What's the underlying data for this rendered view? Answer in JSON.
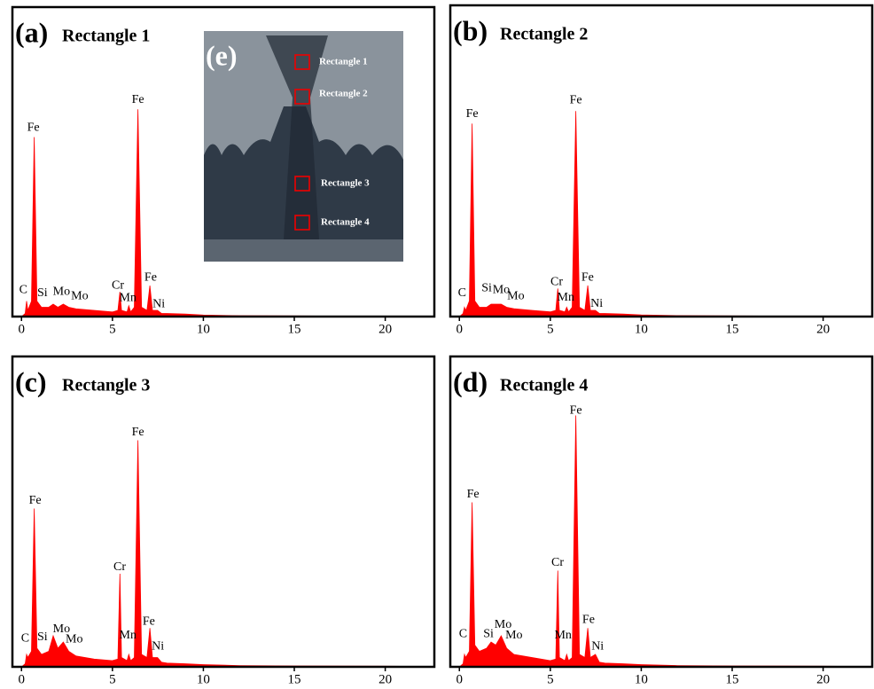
{
  "chart_data": [
    {
      "type": "area",
      "panel": "(a)",
      "title": "Rectangle 1",
      "color": "#ff0000",
      "x": [
        0,
        0.2,
        0.28,
        0.35,
        0.55,
        0.7,
        0.85,
        1.1,
        1.5,
        1.74,
        2,
        2.3,
        2.6,
        3,
        4,
        5,
        5.3,
        5.41,
        5.5,
        5.8,
        5.9,
        6,
        6.2,
        6.4,
        6.6,
        6.9,
        7.06,
        7.2,
        7.48,
        7.7,
        8,
        9,
        10,
        12,
        15,
        20,
        22.5
      ],
      "values": [
        0,
        1,
        5,
        2,
        5,
        58,
        5,
        3,
        3,
        4,
        3,
        4,
        3,
        2.5,
        2,
        1.5,
        2,
        8,
        2,
        1.5,
        3.5,
        1.5,
        3,
        67,
        3,
        2,
        10,
        2,
        2,
        1,
        1,
        0.8,
        0.5,
        0.3,
        0.2,
        0.1,
        0.1
      ],
      "xlim": [
        -0.5,
        22.7
      ],
      "xticks": [
        0,
        5,
        10,
        15,
        20
      ],
      "ylim": [
        0,
        100
      ],
      "annotations": [
        {
          "text": "Fe",
          "x": 0.65,
          "y": 61
        },
        {
          "text": "Fe",
          "x": 6.4,
          "y": 70
        },
        {
          "text": "C",
          "x": 0.1,
          "y": 8.5
        },
        {
          "text": "Si",
          "x": 1.15,
          "y": 7.5
        },
        {
          "text": "Mo",
          "x": 2.2,
          "y": 8
        },
        {
          "text": "Mo",
          "x": 3.2,
          "y": 6.5
        },
        {
          "text": "Cr",
          "x": 5.3,
          "y": 10
        },
        {
          "text": "Mn",
          "x": 5.85,
          "y": 6
        },
        {
          "text": "Fe",
          "x": 7.1,
          "y": 12.5
        },
        {
          "text": "Ni",
          "x": 7.55,
          "y": 4
        }
      ]
    },
    {
      "type": "area",
      "panel": "(b)",
      "title": "Rectangle 2",
      "color": "#ff0000",
      "x": [
        0,
        0.2,
        0.28,
        0.35,
        0.55,
        0.7,
        0.85,
        1.1,
        1.5,
        1.74,
        2,
        2.3,
        2.6,
        3,
        4,
        5,
        5.3,
        5.41,
        5.5,
        5.8,
        5.9,
        6,
        6.2,
        6.4,
        6.6,
        6.9,
        7.06,
        7.2,
        7.48,
        7.7,
        8,
        9,
        10,
        12,
        15,
        20,
        22.5
      ],
      "values": [
        0,
        1,
        3,
        2,
        5,
        62,
        5,
        3,
        3,
        4,
        4,
        4,
        3,
        2.5,
        2,
        1.5,
        2,
        9,
        2,
        1.5,
        3,
        1.5,
        3,
        66,
        3,
        2,
        10,
        2,
        2,
        1,
        1,
        0.8,
        0.5,
        0.3,
        0.2,
        0.1,
        0.1
      ],
      "xlim": [
        -0.5,
        22.7
      ],
      "xticks": [
        0,
        5,
        10,
        15,
        20
      ],
      "ylim": [
        0,
        100
      ],
      "annotations": [
        {
          "text": "Fe",
          "x": 0.7,
          "y": 65
        },
        {
          "text": "Fe",
          "x": 6.4,
          "y": 69.5
        },
        {
          "text": "C",
          "x": 0.15,
          "y": 7.5
        },
        {
          "text": "Si",
          "x": 1.5,
          "y": 9
        },
        {
          "text": "Mo",
          "x": 2.3,
          "y": 8.5
        },
        {
          "text": "Mo",
          "x": 3.1,
          "y": 6.5
        },
        {
          "text": "Cr",
          "x": 5.35,
          "y": 11
        },
        {
          "text": "Mn",
          "x": 5.85,
          "y": 6
        },
        {
          "text": "Fe",
          "x": 7.05,
          "y": 12.5
        },
        {
          "text": "Ni",
          "x": 7.55,
          "y": 4
        }
      ]
    },
    {
      "type": "area",
      "panel": "(c)",
      "title": "Rectangle 3",
      "color": "#ff0000",
      "x": [
        0,
        0.2,
        0.28,
        0.35,
        0.55,
        0.7,
        0.85,
        1.1,
        1.5,
        1.74,
        2,
        2.3,
        2.6,
        3,
        4,
        5,
        5.3,
        5.41,
        5.5,
        5.8,
        5.9,
        6,
        6.2,
        6.4,
        6.6,
        6.9,
        7.06,
        7.2,
        7.48,
        7.7,
        8,
        9,
        10,
        12,
        15,
        20,
        22.5
      ],
      "values": [
        0,
        1,
        4,
        3,
        5,
        51,
        6,
        4,
        5,
        10,
        6,
        8,
        5,
        3.5,
        2.5,
        2,
        2.5,
        30,
        3,
        2,
        4,
        2,
        3,
        73,
        4,
        3,
        12.5,
        3,
        3,
        1.5,
        1.2,
        1,
        0.7,
        0.4,
        0.3,
        0.2,
        0.1
      ],
      "xlim": [
        -0.5,
        22.7
      ],
      "xticks": [
        0,
        5,
        10,
        15,
        20
      ],
      "ylim": [
        0,
        100
      ],
      "annotations": [
        {
          "text": "Fe",
          "x": 0.75,
          "y": 53.5
        },
        {
          "text": "Fe",
          "x": 6.4,
          "y": 75.5
        },
        {
          "text": "Cr",
          "x": 5.4,
          "y": 32
        },
        {
          "text": "C",
          "x": 0.2,
          "y": 9
        },
        {
          "text": "Si",
          "x": 1.15,
          "y": 9.5
        },
        {
          "text": "Mo",
          "x": 2.2,
          "y": 12
        },
        {
          "text": "Mo",
          "x": 2.9,
          "y": 8.8
        },
        {
          "text": "Mn",
          "x": 5.85,
          "y": 10
        },
        {
          "text": "Fe",
          "x": 7.0,
          "y": 14.5
        },
        {
          "text": "Ni",
          "x": 7.5,
          "y": 6.5
        }
      ]
    },
    {
      "type": "area",
      "panel": "(d)",
      "title": "Rectangle 4",
      "color": "#ff0000",
      "x": [
        0,
        0.2,
        0.28,
        0.35,
        0.55,
        0.7,
        0.85,
        1.1,
        1.5,
        1.74,
        2,
        2.3,
        2.6,
        3,
        4,
        5,
        5.3,
        5.41,
        5.5,
        5.8,
        5.9,
        6,
        6.2,
        6.4,
        6.6,
        6.9,
        7.06,
        7.2,
        7.48,
        7.7,
        8,
        9,
        10,
        12,
        15,
        20,
        22.5
      ],
      "values": [
        0,
        1,
        4,
        3,
        5,
        53,
        7,
        5,
        6,
        8,
        7,
        10,
        6,
        4,
        3,
        2,
        2.5,
        31,
        3,
        2,
        4,
        2,
        3,
        81,
        4,
        3,
        12.5,
        3,
        4,
        1.5,
        1.2,
        1,
        0.7,
        0.4,
        0.3,
        0.2,
        0.1
      ],
      "xlim": [
        -0.5,
        22.7
      ],
      "xticks": [
        0,
        5,
        10,
        15,
        20
      ],
      "ylim": [
        0,
        100
      ],
      "annotations": [
        {
          "text": "Fe",
          "x": 0.75,
          "y": 55.5
        },
        {
          "text": "Fe",
          "x": 6.4,
          "y": 82.5
        },
        {
          "text": "Cr",
          "x": 5.4,
          "y": 33.5
        },
        {
          "text": "C",
          "x": 0.2,
          "y": 10.5
        },
        {
          "text": "Si",
          "x": 1.6,
          "y": 10.5
        },
        {
          "text": "Mo",
          "x": 2.4,
          "y": 13.5
        },
        {
          "text": "Mo",
          "x": 3.0,
          "y": 10
        },
        {
          "text": "Mn",
          "x": 5.7,
          "y": 10
        },
        {
          "text": "Fe",
          "x": 7.1,
          "y": 15
        },
        {
          "text": "Ni",
          "x": 7.6,
          "y": 6.5
        }
      ]
    }
  ],
  "inset": {
    "label": "(e)",
    "regions": [
      "Rectangle 1",
      "Rectangle 2",
      "Rectangle 3",
      "Rectangle 4"
    ]
  }
}
